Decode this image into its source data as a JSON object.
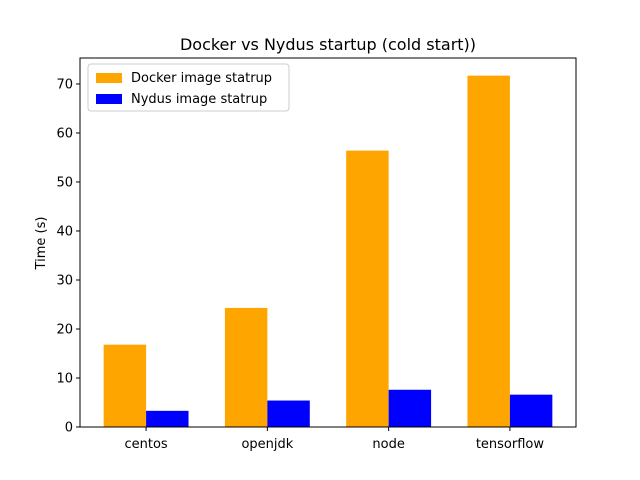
{
  "chart_data": {
    "type": "bar",
    "title": "Docker vs Nydus startup (cold start))",
    "xlabel": "",
    "ylabel": "Time (s)",
    "categories": [
      "centos",
      "openjdk",
      "node",
      "tensorflow"
    ],
    "series": [
      {
        "name": "Docker image statrup",
        "color": "#ffa500",
        "values": [
          16.8,
          24.3,
          56.4,
          71.7
        ]
      },
      {
        "name": "Nydus image statrup",
        "color": "#0000ff",
        "values": [
          3.3,
          5.4,
          7.6,
          6.6
        ]
      }
    ],
    "ylim": [
      0,
      75.3
    ],
    "yticks": [
      0,
      10,
      20,
      30,
      40,
      50,
      60,
      70
    ],
    "grid": false,
    "legend": "top-left"
  }
}
